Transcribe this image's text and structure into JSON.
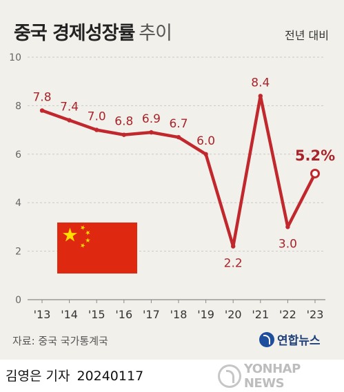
{
  "header": {
    "title": "중국 경제성장률",
    "title_suffix": "추이",
    "subtitle": "전년 대비"
  },
  "chart_data": {
    "type": "line",
    "x": [
      "'13",
      "'14",
      "'15",
      "'16",
      "'17",
      "'18",
      "'19",
      "'20",
      "'21",
      "'22",
      "'23"
    ],
    "values": [
      7.8,
      7.4,
      7.0,
      6.8,
      6.9,
      6.7,
      6.0,
      2.2,
      8.4,
      3.0,
      5.2
    ],
    "data_labels": [
      "7.8",
      "7.4",
      "7.0",
      "6.8",
      "6.9",
      "6.7",
      "6.0",
      "2.2",
      "8.4",
      "3.0",
      "5.2%"
    ],
    "yticks": [
      "0",
      "2",
      "4",
      "6",
      "8",
      "10"
    ],
    "ylim": [
      0,
      10
    ],
    "grid": true,
    "highlight_last": true,
    "colors": {
      "line": "#c1282d",
      "label": "#a8242a",
      "grid": "#c9c9c9",
      "tick": "#666666"
    }
  },
  "flag": {
    "icon": "china-flag-icon",
    "red": "#de2910",
    "yellow": "#ffde00"
  },
  "source": "자료: 중국 국가통계국",
  "logo": {
    "icon": "yonhap-logo-icon",
    "text": "연합뉴스"
  },
  "credit": {
    "author": "김영은 기자",
    "date": "20240117"
  },
  "watermark": {
    "icon": "yonhap-watermark-icon",
    "text": "YONHAP NEWS"
  }
}
